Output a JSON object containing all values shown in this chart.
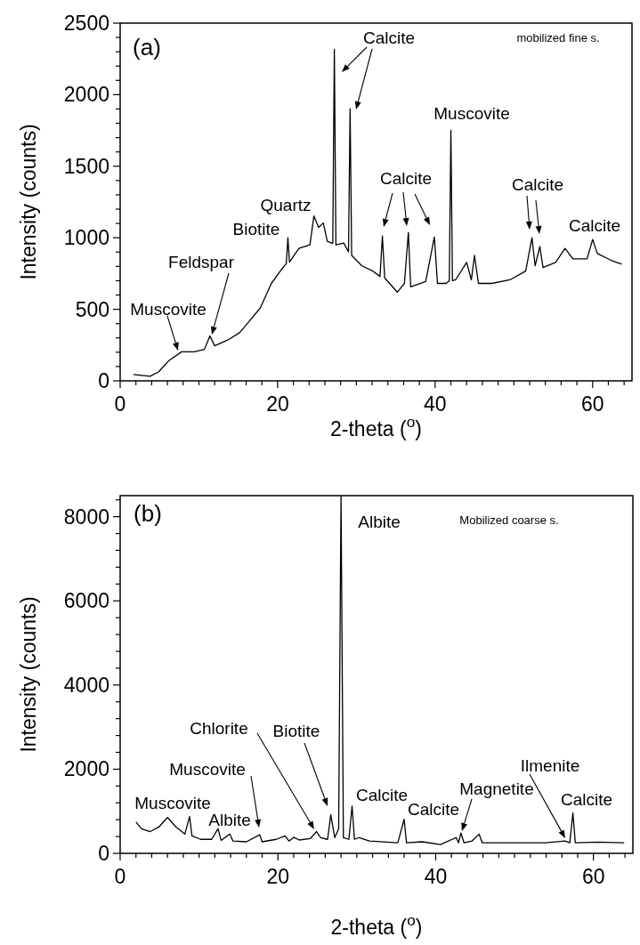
{
  "chart_data": [
    {
      "type": "line",
      "xlabel": "2-theta ($^{o}$)",
      "ylabel": "Intensity (counts)",
      "xlim": [
        0,
        65
      ],
      "ylim": [
        0,
        2500
      ],
      "xticks": [
        0,
        {
          "value": 2,
          "label": null
        },
        {
          "value": 4,
          "label": null
        },
        {
          "value": 6,
          "label": null
        },
        {
          "value": 8,
          "label": null
        },
        {
          "value": 10,
          "label": null
        },
        {
          "value": 12,
          "label": null
        },
        {
          "value": 14,
          "label": null
        },
        {
          "value": 16,
          "label": null
        },
        {
          "value": 18,
          "label": null
        },
        20,
        {
          "value": 22,
          "label": null
        },
        {
          "value": 24,
          "label": null
        },
        {
          "value": 26,
          "label": null
        },
        {
          "value": 28,
          "label": null
        },
        {
          "value": 30,
          "label": null
        },
        {
          "value": 32,
          "label": null
        },
        {
          "value": 34,
          "label": null
        },
        {
          "value": 36,
          "label": null
        },
        {
          "value": 38,
          "label": null
        },
        40,
        {
          "value": 42,
          "label": null
        },
        {
          "value": 44,
          "label": null
        },
        {
          "value": 46,
          "label": null
        },
        {
          "value": 48,
          "label": null
        },
        {
          "value": 50,
          "label": null
        },
        {
          "value": 52,
          "label": null
        },
        {
          "value": 54,
          "label": null
        },
        {
          "value": 56,
          "label": null
        },
        {
          "value": 58,
          "label": null
        },
        60,
        {
          "value": 62,
          "label": null
        },
        {
          "value": 64,
          "label": null
        }
      ],
      "yticks": [
        0,
        {
          "value": 100,
          "label": null
        },
        {
          "value": 200,
          "label": null
        },
        {
          "value": 300,
          "label": null
        },
        {
          "value": 400,
          "label": null
        },
        500,
        {
          "value": 600,
          "label": null
        },
        {
          "value": 700,
          "label": null
        },
        {
          "value": 800,
          "label": null
        },
        {
          "value": 900,
          "label": null
        },
        1000,
        {
          "value": 1100,
          "label": null
        },
        {
          "value": 1200,
          "label": null
        },
        {
          "value": 1300,
          "label": null
        },
        {
          "value": 1400,
          "label": null
        },
        1500,
        {
          "value": 1600,
          "label": null
        },
        {
          "value": 1700,
          "label": null
        },
        {
          "value": 1800,
          "label": null
        },
        {
          "value": 1900,
          "label": null
        },
        2000,
        {
          "value": 2100,
          "label": null
        },
        {
          "value": 2200,
          "label": null
        },
        {
          "value": 2300,
          "label": null
        },
        {
          "value": 2400,
          "label": null
        },
        2500
      ],
      "grid": false,
      "marker": "none",
      "line_style": "solid",
      "series": [
        {
          "color": "#000000",
          "x": [
            1.7,
            3.8,
            4.9,
            6.2,
            7.8,
            9.4,
            10.7,
            11.4,
            12.0,
            13.8,
            15.2,
            16.5,
            17.8,
            19.2,
            20.5,
            21.1,
            21.3,
            21.5,
            22.7,
            24.1,
            24.6,
            25.2,
            25.8,
            26.3,
            27.0,
            27.2,
            27.4,
            28.4,
            29.0,
            29.2,
            29.4,
            30.7,
            32.1,
            33.0,
            33.3,
            33.6,
            35.2,
            36.1,
            36.6,
            36.9,
            38.8,
            39.9,
            40.3,
            41.4,
            41.8,
            42.0,
            42.2,
            42.6,
            44.0,
            44.6,
            45.0,
            45.5,
            47.2,
            49.5,
            51.5,
            52.3,
            52.7,
            53.3,
            53.7,
            55.3,
            56.5,
            57.5,
            59.3,
            60.0,
            60.6,
            62.4,
            63.7
          ],
          "values": [
            44,
            32,
            64,
            142,
            203,
            203,
            220,
            314,
            245,
            289,
            338,
            424,
            510,
            681,
            779,
            820,
            1000,
            830,
            926,
            951,
            1152,
            1073,
            1103,
            975,
            960,
            2317,
            950,
            963,
            902,
            1902,
            877,
            804,
            767,
            730,
            1012,
            718,
            620,
            681,
            1037,
            657,
            694,
            1005,
            681,
            681,
            700,
            1751,
            700,
            706,
            828,
            706,
            877,
            681,
            681,
            706,
            767,
            1000,
            804,
            939,
            792,
            828,
            926,
            853,
            853,
            988,
            890,
            841,
            816
          ]
        }
      ],
      "annotations": [
        "(a)",
        "mobilized fine s.",
        "Calcite",
        "Muscovite",
        "Calcite",
        "Calcite",
        "Calcite",
        "Quartz",
        "Biotite",
        "Feldspar",
        "Muscovite"
      ]
    },
    {
      "type": "line",
      "xlabel": "2-theta ($^{o}$)",
      "ylabel": "Intensity (counts)",
      "xlim": [
        0,
        65
      ],
      "ylim": [
        0,
        8500
      ],
      "xticks": [
        0,
        {
          "value": 2,
          "label": null
        },
        {
          "value": 4,
          "label": null
        },
        {
          "value": 6,
          "label": null
        },
        {
          "value": 8,
          "label": null
        },
        {
          "value": 10,
          "label": null
        },
        {
          "value": 12,
          "label": null
        },
        {
          "value": 14,
          "label": null
        },
        {
          "value": 16,
          "label": null
        },
        {
          "value": 18,
          "label": null
        },
        20,
        {
          "value": 22,
          "label": null
        },
        {
          "value": 24,
          "label": null
        },
        {
          "value": 26,
          "label": null
        },
        {
          "value": 28,
          "label": null
        },
        {
          "value": 30,
          "label": null
        },
        {
          "value": 32,
          "label": null
        },
        {
          "value": 34,
          "label": null
        },
        {
          "value": 36,
          "label": null
        },
        {
          "value": 38,
          "label": null
        },
        40,
        {
          "value": 42,
          "label": null
        },
        {
          "value": 44,
          "label": null
        },
        {
          "value": 46,
          "label": null
        },
        {
          "value": 48,
          "label": null
        },
        {
          "value": 50,
          "label": null
        },
        {
          "value": 52,
          "label": null
        },
        {
          "value": 54,
          "label": null
        },
        {
          "value": 56,
          "label": null
        },
        {
          "value": 58,
          "label": null
        },
        60,
        {
          "value": 62,
          "label": null
        },
        {
          "value": 64,
          "label": null
        }
      ],
      "yticks": [
        0,
        {
          "value": 400,
          "label": null
        },
        {
          "value": 800,
          "label": null
        },
        {
          "value": 1200,
          "label": null
        },
        {
          "value": 1600,
          "label": null
        },
        2000,
        {
          "value": 2400,
          "label": null
        },
        {
          "value": 2800,
          "label": null
        },
        {
          "value": 3200,
          "label": null
        },
        {
          "value": 3600,
          "label": null
        },
        4000,
        {
          "value": 4400,
          "label": null
        },
        {
          "value": 4800,
          "label": null
        },
        {
          "value": 5200,
          "label": null
        },
        {
          "value": 5600,
          "label": null
        },
        6000,
        {
          "value": 6400,
          "label": null
        },
        {
          "value": 6800,
          "label": null
        },
        {
          "value": 7200,
          "label": null
        },
        {
          "value": 7600,
          "label": null
        },
        8000,
        {
          "value": 8400,
          "label": null
        }
      ],
      "grid": false,
      "marker": "none",
      "line_style": "solid",
      "series": [
        {
          "color": "#000000",
          "x": [
            2.0,
            2.7,
            3.8,
            4.9,
            6.0,
            7.1,
            8.2,
            8.8,
            9.1,
            10.2,
            11.6,
            12.4,
            12.8,
            13.9,
            14.3,
            16.0,
            17.7,
            18.0,
            19.8,
            20.9,
            21.4,
            22.0,
            22.7,
            24.1,
            24.9,
            25.4,
            26.3,
            26.7,
            27.2,
            27.7,
            28.0,
            28.3,
            29.0,
            29.4,
            29.7,
            30.3,
            31.6,
            35.2,
            36.0,
            36.3,
            38.3,
            40.6,
            42.6,
            42.9,
            43.2,
            43.6,
            44.6,
            45.5,
            45.9,
            49.5,
            53.9,
            56.4,
            57.0,
            57.4,
            57.7,
            60.6,
            63.9
          ],
          "values": [
            750,
            583,
            517,
            625,
            850,
            625,
            458,
            875,
            417,
            333,
            333,
            583,
            308,
            458,
            292,
            275,
            442,
            275,
            333,
            417,
            292,
            383,
            317,
            350,
            517,
            375,
            333,
            917,
            375,
            583,
            8500,
            375,
            333,
            1125,
            333,
            375,
            292,
            250,
            808,
            250,
            275,
            208,
            375,
            250,
            483,
            250,
            292,
            458,
            250,
            250,
            250,
            292,
            250,
            958,
            250,
            267,
            250
          ]
        }
      ],
      "annotations": [
        "(b)",
        "Albite",
        "Mobilized coarse s.",
        "Chlorite",
        "Biotite",
        "Muscovite",
        "Muscovite",
        "Albite",
        "Calcite",
        "Calcite",
        "Magnetite",
        "Ilmenite",
        "Calcite"
      ]
    }
  ]
}
